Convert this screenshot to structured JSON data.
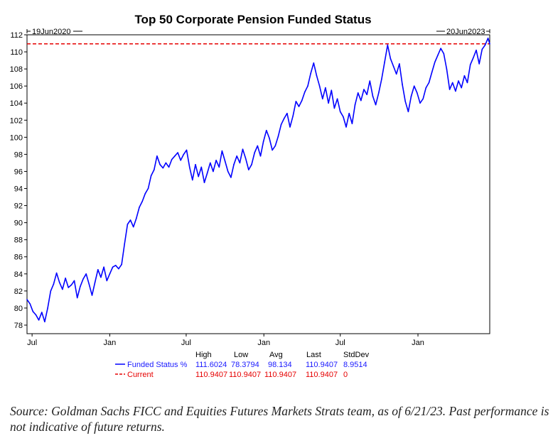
{
  "chart_data": {
    "type": "line",
    "title": "Top 50 Corporate Pension Funded Status",
    "start_date_label": "19Jun2020",
    "end_date_label": "20Jun2023",
    "x_tick_labels": [
      "Jul",
      "Jan",
      "Jul",
      "Jan",
      "Jul",
      "Jan"
    ],
    "x_tick_dates": [
      "2020-07-01",
      "2021-01-01",
      "2021-07-01",
      "2022-01-01",
      "2022-07-01",
      "2023-01-01"
    ],
    "ylim": [
      77,
      112
    ],
    "y_ticks": [
      78,
      80,
      82,
      84,
      86,
      88,
      90,
      92,
      94,
      96,
      98,
      100,
      102,
      104,
      106,
      108,
      110,
      112
    ],
    "grid": false,
    "series": [
      {
        "name": "Funded Status %",
        "color": "#0000ff",
        "points": [
          [
            "2020-06-19",
            81.0
          ],
          [
            "2020-06-26",
            80.5
          ],
          [
            "2020-07-03",
            79.6
          ],
          [
            "2020-07-10",
            79.2
          ],
          [
            "2020-07-17",
            78.6
          ],
          [
            "2020-07-24",
            79.5
          ],
          [
            "2020-07-31",
            78.4
          ],
          [
            "2020-08-07",
            80.0
          ],
          [
            "2020-08-14",
            82.0
          ],
          [
            "2020-08-21",
            82.8
          ],
          [
            "2020-08-28",
            84.1
          ],
          [
            "2020-09-04",
            83.0
          ],
          [
            "2020-09-11",
            82.2
          ],
          [
            "2020-09-18",
            83.5
          ],
          [
            "2020-09-25",
            82.4
          ],
          [
            "2020-10-02",
            82.7
          ],
          [
            "2020-10-09",
            83.2
          ],
          [
            "2020-10-16",
            81.2
          ],
          [
            "2020-10-23",
            82.5
          ],
          [
            "2020-10-30",
            83.4
          ],
          [
            "2020-11-06",
            84.0
          ],
          [
            "2020-11-13",
            82.8
          ],
          [
            "2020-11-20",
            81.5
          ],
          [
            "2020-11-27",
            83.0
          ],
          [
            "2020-12-04",
            84.5
          ],
          [
            "2020-12-11",
            83.6
          ],
          [
            "2020-12-18",
            84.8
          ],
          [
            "2020-12-25",
            83.2
          ],
          [
            "2021-01-01",
            84.0
          ],
          [
            "2021-01-08",
            84.8
          ],
          [
            "2021-01-15",
            85.0
          ],
          [
            "2021-01-22",
            84.6
          ],
          [
            "2021-01-29",
            85.1
          ],
          [
            "2021-02-05",
            87.5
          ],
          [
            "2021-02-12",
            89.8
          ],
          [
            "2021-02-19",
            90.3
          ],
          [
            "2021-02-26",
            89.5
          ],
          [
            "2021-03-05",
            90.5
          ],
          [
            "2021-03-12",
            91.8
          ],
          [
            "2021-03-19",
            92.5
          ],
          [
            "2021-03-26",
            93.4
          ],
          [
            "2021-04-02",
            94.0
          ],
          [
            "2021-04-09",
            95.5
          ],
          [
            "2021-04-16",
            96.2
          ],
          [
            "2021-04-23",
            97.8
          ],
          [
            "2021-04-30",
            96.8
          ],
          [
            "2021-05-07",
            96.4
          ],
          [
            "2021-05-14",
            97.0
          ],
          [
            "2021-05-21",
            96.5
          ],
          [
            "2021-05-28",
            97.4
          ],
          [
            "2021-06-04",
            97.8
          ],
          [
            "2021-06-11",
            98.2
          ],
          [
            "2021-06-18",
            97.3
          ],
          [
            "2021-06-25",
            98.0
          ],
          [
            "2021-07-02",
            98.5
          ],
          [
            "2021-07-09",
            96.5
          ],
          [
            "2021-07-16",
            95.0
          ],
          [
            "2021-07-23",
            96.8
          ],
          [
            "2021-07-30",
            95.4
          ],
          [
            "2021-08-06",
            96.5
          ],
          [
            "2021-08-13",
            94.7
          ],
          [
            "2021-08-20",
            95.8
          ],
          [
            "2021-08-27",
            97.0
          ],
          [
            "2021-09-03",
            96.0
          ],
          [
            "2021-09-10",
            97.3
          ],
          [
            "2021-09-17",
            96.5
          ],
          [
            "2021-09-24",
            98.4
          ],
          [
            "2021-10-01",
            97.2
          ],
          [
            "2021-10-08",
            96.0
          ],
          [
            "2021-10-15",
            95.3
          ],
          [
            "2021-10-22",
            96.8
          ],
          [
            "2021-10-29",
            97.8
          ],
          [
            "2021-11-05",
            97.0
          ],
          [
            "2021-11-12",
            98.6
          ],
          [
            "2021-11-19",
            97.5
          ],
          [
            "2021-11-26",
            96.2
          ],
          [
            "2021-12-03",
            96.8
          ],
          [
            "2021-12-10",
            98.2
          ],
          [
            "2021-12-17",
            99.0
          ],
          [
            "2021-12-24",
            97.8
          ],
          [
            "2021-12-31",
            99.5
          ],
          [
            "2022-01-07",
            100.8
          ],
          [
            "2022-01-14",
            99.9
          ],
          [
            "2022-01-21",
            98.5
          ],
          [
            "2022-01-28",
            99.0
          ],
          [
            "2022-02-04",
            100.1
          ],
          [
            "2022-02-11",
            101.5
          ],
          [
            "2022-02-18",
            102.2
          ],
          [
            "2022-02-25",
            102.8
          ],
          [
            "2022-03-04",
            101.2
          ],
          [
            "2022-03-11",
            102.5
          ],
          [
            "2022-03-18",
            104.2
          ],
          [
            "2022-03-25",
            103.6
          ],
          [
            "2022-04-01",
            104.3
          ],
          [
            "2022-04-08",
            105.3
          ],
          [
            "2022-04-15",
            106.0
          ],
          [
            "2022-04-22",
            107.5
          ],
          [
            "2022-04-29",
            108.7
          ],
          [
            "2022-05-06",
            107.2
          ],
          [
            "2022-05-13",
            106.0
          ],
          [
            "2022-05-20",
            104.5
          ],
          [
            "2022-05-27",
            105.8
          ],
          [
            "2022-06-03",
            104.0
          ],
          [
            "2022-06-10",
            105.5
          ],
          [
            "2022-06-17",
            103.4
          ],
          [
            "2022-06-24",
            104.5
          ],
          [
            "2022-07-01",
            103.0
          ],
          [
            "2022-07-08",
            102.4
          ],
          [
            "2022-07-15",
            101.2
          ],
          [
            "2022-07-22",
            102.8
          ],
          [
            "2022-07-29",
            101.6
          ],
          [
            "2022-08-05",
            103.8
          ],
          [
            "2022-08-12",
            105.2
          ],
          [
            "2022-08-19",
            104.3
          ],
          [
            "2022-08-26",
            105.6
          ],
          [
            "2022-09-02",
            105.0
          ],
          [
            "2022-09-09",
            106.6
          ],
          [
            "2022-09-16",
            104.8
          ],
          [
            "2022-09-23",
            103.8
          ],
          [
            "2022-09-30",
            105.2
          ],
          [
            "2022-10-07",
            106.8
          ],
          [
            "2022-10-14",
            108.8
          ],
          [
            "2022-10-21",
            110.8
          ],
          [
            "2022-10-28",
            109.2
          ],
          [
            "2022-11-04",
            108.3
          ],
          [
            "2022-11-11",
            107.4
          ],
          [
            "2022-11-18",
            108.6
          ],
          [
            "2022-11-25",
            106.2
          ],
          [
            "2022-12-02",
            104.2
          ],
          [
            "2022-12-09",
            103.0
          ],
          [
            "2022-12-16",
            104.8
          ],
          [
            "2022-12-23",
            106.0
          ],
          [
            "2022-12-30",
            105.2
          ],
          [
            "2023-01-06",
            104.0
          ],
          [
            "2023-01-13",
            104.5
          ],
          [
            "2023-01-20",
            105.8
          ],
          [
            "2023-01-27",
            106.4
          ],
          [
            "2023-02-03",
            107.6
          ],
          [
            "2023-02-10",
            108.8
          ],
          [
            "2023-02-17",
            109.6
          ],
          [
            "2023-02-24",
            110.4
          ],
          [
            "2023-03-03",
            109.8
          ],
          [
            "2023-03-10",
            108.0
          ],
          [
            "2023-03-17",
            105.6
          ],
          [
            "2023-03-24",
            106.4
          ],
          [
            "2023-03-31",
            105.4
          ],
          [
            "2023-04-07",
            106.6
          ],
          [
            "2023-04-14",
            105.8
          ],
          [
            "2023-04-21",
            107.2
          ],
          [
            "2023-04-28",
            106.4
          ],
          [
            "2023-05-05",
            108.5
          ],
          [
            "2023-05-12",
            109.3
          ],
          [
            "2023-05-19",
            110.2
          ],
          [
            "2023-05-26",
            108.6
          ],
          [
            "2023-06-02",
            110.3
          ],
          [
            "2023-06-09",
            110.8
          ],
          [
            "2023-06-16",
            111.6
          ],
          [
            "2023-06-20",
            110.94
          ]
        ]
      },
      {
        "name": "Current",
        "color": "#e60000",
        "style": "dashed",
        "value": 110.9407
      }
    ],
    "stats": {
      "headers": [
        "High",
        "Low",
        "Avg",
        "Last",
        "StdDev"
      ],
      "rows": [
        {
          "label": "Funded Status %",
          "color": "#1a1aff",
          "values": [
            "111.6024",
            "78.3794",
            "98.134",
            "110.9407",
            "8.9514"
          ]
        },
        {
          "label": "Current",
          "color": "#e60000",
          "values": [
            "110.9407",
            "110.9407",
            "110.9407",
            "110.9407",
            "0"
          ]
        }
      ]
    }
  },
  "source_note": "Source: Goldman Sachs FICC and Equities Futures Markets Strats team, as of 6/21/23. Past performance is not indicative of future returns."
}
